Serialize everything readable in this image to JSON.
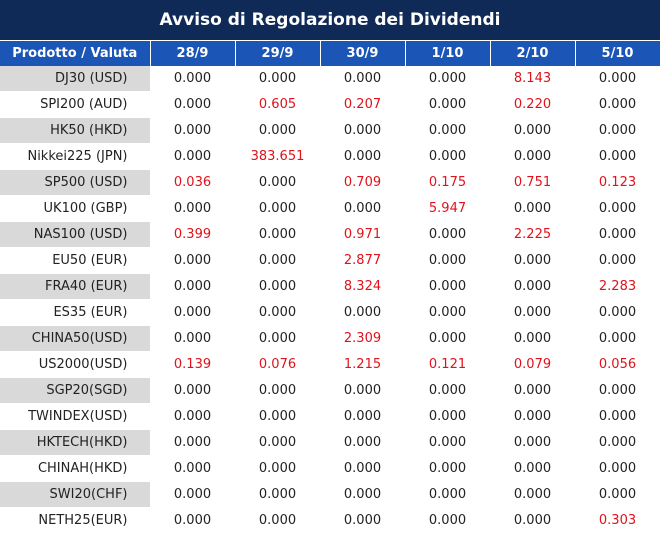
{
  "title": "Avviso di Regolazione dei Dividendi",
  "header": [
    "Prodotto / Valuta",
    "28/9",
    "29/9",
    "30/9",
    "1/10",
    "2/10",
    "5/10"
  ],
  "colors": {
    "title_bg": "#102a57",
    "header_bg": "#1b56b6",
    "highlight": "#e0121b",
    "shade": "#d9d9d9"
  },
  "rows": [
    {
      "product": "DJ30 (USD)",
      "values": [
        "0.000",
        "0.000",
        "0.000",
        "0.000",
        "8.143",
        "0.000"
      ]
    },
    {
      "product": "SPI200 (AUD)",
      "values": [
        "0.000",
        "0.605",
        "0.207",
        "0.000",
        "0.220",
        "0.000"
      ]
    },
    {
      "product": "HK50 (HKD)",
      "values": [
        "0.000",
        "0.000",
        "0.000",
        "0.000",
        "0.000",
        "0.000"
      ]
    },
    {
      "product": "Nikkei225 (JPN)",
      "values": [
        "0.000",
        "383.651",
        "0.000",
        "0.000",
        "0.000",
        "0.000"
      ]
    },
    {
      "product": "SP500 (USD)",
      "values": [
        "0.036",
        "0.000",
        "0.709",
        "0.175",
        "0.751",
        "0.123"
      ]
    },
    {
      "product": "UK100 (GBP)",
      "values": [
        "0.000",
        "0.000",
        "0.000",
        "5.947",
        "0.000",
        "0.000"
      ]
    },
    {
      "product": "NAS100 (USD)",
      "values": [
        "0.399",
        "0.000",
        "0.971",
        "0.000",
        "2.225",
        "0.000"
      ]
    },
    {
      "product": "EU50 (EUR)",
      "values": [
        "0.000",
        "0.000",
        "2.877",
        "0.000",
        "0.000",
        "0.000"
      ]
    },
    {
      "product": "FRA40 (EUR)",
      "values": [
        "0.000",
        "0.000",
        "8.324",
        "0.000",
        "0.000",
        "2.283"
      ]
    },
    {
      "product": "ES35 (EUR)",
      "values": [
        "0.000",
        "0.000",
        "0.000",
        "0.000",
        "0.000",
        "0.000"
      ]
    },
    {
      "product": "CHINA50(USD)",
      "values": [
        "0.000",
        "0.000",
        "2.309",
        "0.000",
        "0.000",
        "0.000"
      ]
    },
    {
      "product": "US2000(USD)",
      "values": [
        "0.139",
        "0.076",
        "1.215",
        "0.121",
        "0.079",
        "0.056"
      ]
    },
    {
      "product": "SGP20(SGD)",
      "values": [
        "0.000",
        "0.000",
        "0.000",
        "0.000",
        "0.000",
        "0.000"
      ]
    },
    {
      "product": "TWINDEX(USD)",
      "values": [
        "0.000",
        "0.000",
        "0.000",
        "0.000",
        "0.000",
        "0.000"
      ]
    },
    {
      "product": "HKTECH(HKD)",
      "values": [
        "0.000",
        "0.000",
        "0.000",
        "0.000",
        "0.000",
        "0.000"
      ]
    },
    {
      "product": "CHINAH(HKD)",
      "values": [
        "0.000",
        "0.000",
        "0.000",
        "0.000",
        "0.000",
        "0.000"
      ]
    },
    {
      "product": "SWI20(CHF)",
      "values": [
        "0.000",
        "0.000",
        "0.000",
        "0.000",
        "0.000",
        "0.000"
      ]
    },
    {
      "product": "NETH25(EUR)",
      "values": [
        "0.000",
        "0.000",
        "0.000",
        "0.000",
        "0.000",
        "0.303"
      ]
    }
  ]
}
